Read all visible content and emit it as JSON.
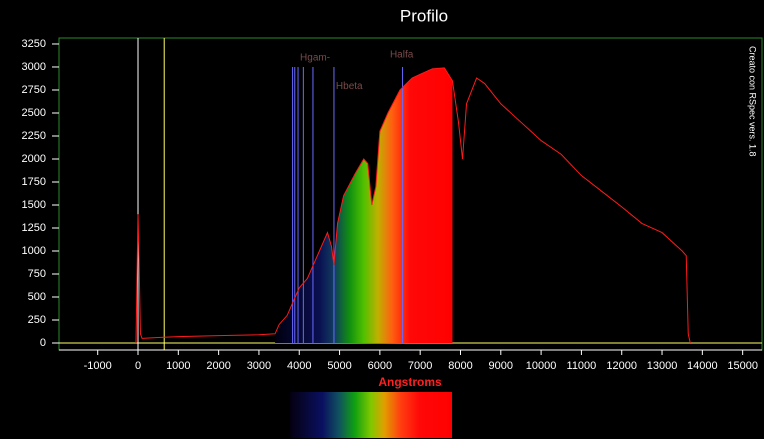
{
  "chart_data": {
    "type": "line",
    "title": "Profilo",
    "x_label": "Angstroms",
    "side_note": "Creato con RSpec vers. 1.8",
    "color": "#ff1a1a",
    "x": [
      -50,
      0,
      30,
      60,
      100,
      500,
      1000,
      2000,
      3000,
      3400,
      3500,
      3700,
      3900,
      4000,
      4200,
      4400,
      4600,
      4700,
      4800,
      4860,
      4950,
      5100,
      5400,
      5600,
      5700,
      5800,
      5900,
      6000,
      6200,
      6500,
      6800,
      7000,
      7300,
      7600,
      7800,
      7950,
      8050,
      8150,
      8400,
      8600,
      9000,
      9500,
      10000,
      10500,
      11000,
      11500,
      12000,
      12500,
      13000,
      13500,
      13600,
      13650,
      13700
    ],
    "values": [
      0,
      1400,
      800,
      100,
      50,
      60,
      70,
      80,
      90,
      100,
      200,
      300,
      500,
      600,
      700,
      900,
      1100,
      1200,
      1050,
      850,
      1300,
      1600,
      1850,
      2000,
      1950,
      1500,
      1700,
      2300,
      2500,
      2750,
      2880,
      2920,
      2980,
      2990,
      2850,
      2400,
      2000,
      2600,
      2880,
      2820,
      2600,
      2400,
      2200,
      2050,
      1820,
      1650,
      1480,
      1300,
      1200,
      1000,
      950,
      100,
      0
    ],
    "spectrum_fill": [
      3400,
      7800
    ],
    "reference_lines": [
      {
        "x": 0,
        "color": "#ffffff"
      },
      {
        "x": 650,
        "color": "#ffff66"
      }
    ],
    "line_markers": {
      "color": "#6a6aff",
      "top": 3000,
      "x": [
        3835,
        3889,
        3970,
        4102,
        4340,
        4861,
        6563
      ]
    },
    "annotations": [
      {
        "text": "Hgam-",
        "x": 4020,
        "y": 3100
      },
      {
        "text": "Hbeta",
        "x": 4910,
        "y": 2790
      },
      {
        "text": "Halfa",
        "x": 6250,
        "y": 3130
      }
    ],
    "xlim": [
      -1960,
      15480
    ],
    "ylim": [
      -76,
      3315
    ],
    "xticks": [
      -1000,
      0,
      1000,
      2000,
      3000,
      4000,
      5000,
      6000,
      7000,
      8000,
      9000,
      10000,
      11000,
      12000,
      13000,
      14000,
      15000
    ],
    "yticks": [
      0,
      250,
      500,
      750,
      1000,
      1250,
      1500,
      1750,
      2000,
      2250,
      2500,
      2750,
      3000,
      3250
    ]
  }
}
